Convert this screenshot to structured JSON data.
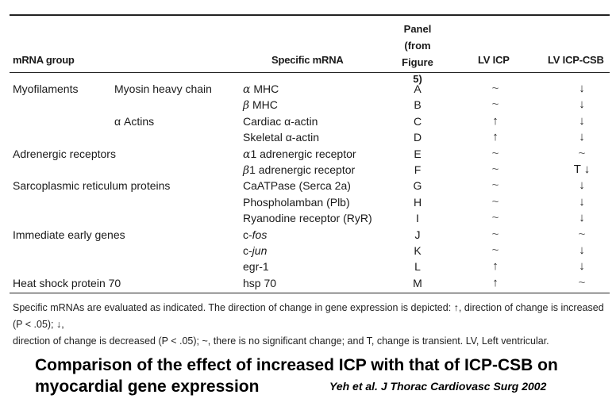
{
  "table": {
    "headers": {
      "mrna_group": "mRNA group",
      "specific_mrna": "Specific mRNA",
      "panel_lines": [
        "Panel",
        "(from",
        "Figure 5)"
      ],
      "lv_icp": "LV ICP",
      "lv_icp_csb": "LV ICP-CSB"
    },
    "rows": [
      {
        "group": "Myofilaments",
        "sub": "Myosin heavy chain",
        "mrna_prefix": "α",
        "mrna_main": " MHC",
        "mrna_suffix": "",
        "panel": "A",
        "icp": "~",
        "csb": "↓"
      },
      {
        "group": "",
        "sub": "",
        "mrna_prefix": "β",
        "mrna_main": " MHC",
        "mrna_suffix": "",
        "panel": "B",
        "icp": "~",
        "csb": "↓"
      },
      {
        "group": "",
        "sub": "α Actins",
        "mrna_prefix": "",
        "mrna_main": "Cardiac ",
        "mrna_suffix": "α-actin",
        "panel": "C",
        "icp": "↑",
        "csb": "↓"
      },
      {
        "group": "",
        "sub": "",
        "mrna_prefix": "",
        "mrna_main": "Skeletal ",
        "mrna_suffix": "α-actin",
        "panel": "D",
        "icp": "↑",
        "csb": "↓"
      },
      {
        "group": "Adrenergic receptors",
        "sub": "",
        "mrna_prefix": "α",
        "mrna_main": "1 adrenergic receptor",
        "mrna_suffix": "",
        "panel": "E",
        "icp": "~",
        "csb": "~"
      },
      {
        "group": "",
        "sub": "",
        "mrna_prefix": "β",
        "mrna_main": "1 adrenergic receptor",
        "mrna_suffix": "",
        "panel": "F",
        "icp": "~",
        "csb": "T ↓"
      },
      {
        "group": "Sarcoplasmic reticulum proteins",
        "sub": "",
        "mrna_prefix": "",
        "mrna_main": "CaATPase (Serca 2a)",
        "mrna_suffix": "",
        "panel": "G",
        "icp": "~",
        "csb": "↓"
      },
      {
        "group": "",
        "sub": "",
        "mrna_prefix": "",
        "mrna_main": "Phospholamban (Plb)",
        "mrna_suffix": "",
        "panel": "H",
        "icp": "~",
        "csb": "↓"
      },
      {
        "group": "",
        "sub": "",
        "mrna_prefix": "",
        "mrna_main": "Ryanodine receptor (RyR)",
        "mrna_suffix": "",
        "panel": "I",
        "icp": "~",
        "csb": "↓"
      },
      {
        "group": "Immediate early genes",
        "sub": "",
        "mrna_prefix": "",
        "mrna_main": "c-",
        "mrna_suffix": "fos",
        "panel": "J",
        "icp": "~",
        "csb": "~"
      },
      {
        "group": "",
        "sub": "",
        "mrna_prefix": "",
        "mrna_main": "c-",
        "mrna_suffix": "jun",
        "panel": "K",
        "icp": "~",
        "csb": "↓"
      },
      {
        "group": "",
        "sub": "",
        "mrna_prefix": "",
        "mrna_main": "egr-1",
        "mrna_suffix": "",
        "panel": "L",
        "icp": "↑",
        "csb": "↓"
      },
      {
        "group": "Heat shock protein 70",
        "sub": "",
        "mrna_prefix": "",
        "mrna_main": "hsp 70",
        "mrna_suffix": "",
        "panel": "M",
        "icp": "↑",
        "csb": "~"
      }
    ]
  },
  "footnote": {
    "line1": "Specific mRNAs are evaluated as indicated. The direction of change in gene expression is depicted: ↑, direction of change is increased (P < .05); ↓,",
    "line2": "direction of change is decreased (P < .05); ~, there is no significant change; and T, change is transient. LV, Left ventricular."
  },
  "caption": {
    "line1": "Comparison of the effect of increased ICP with that of ICP-CSB on",
    "line2": "myocardial gene expression"
  },
  "citation": "Yeh et al. J Thorac Cardiovasc Surg 2002"
}
